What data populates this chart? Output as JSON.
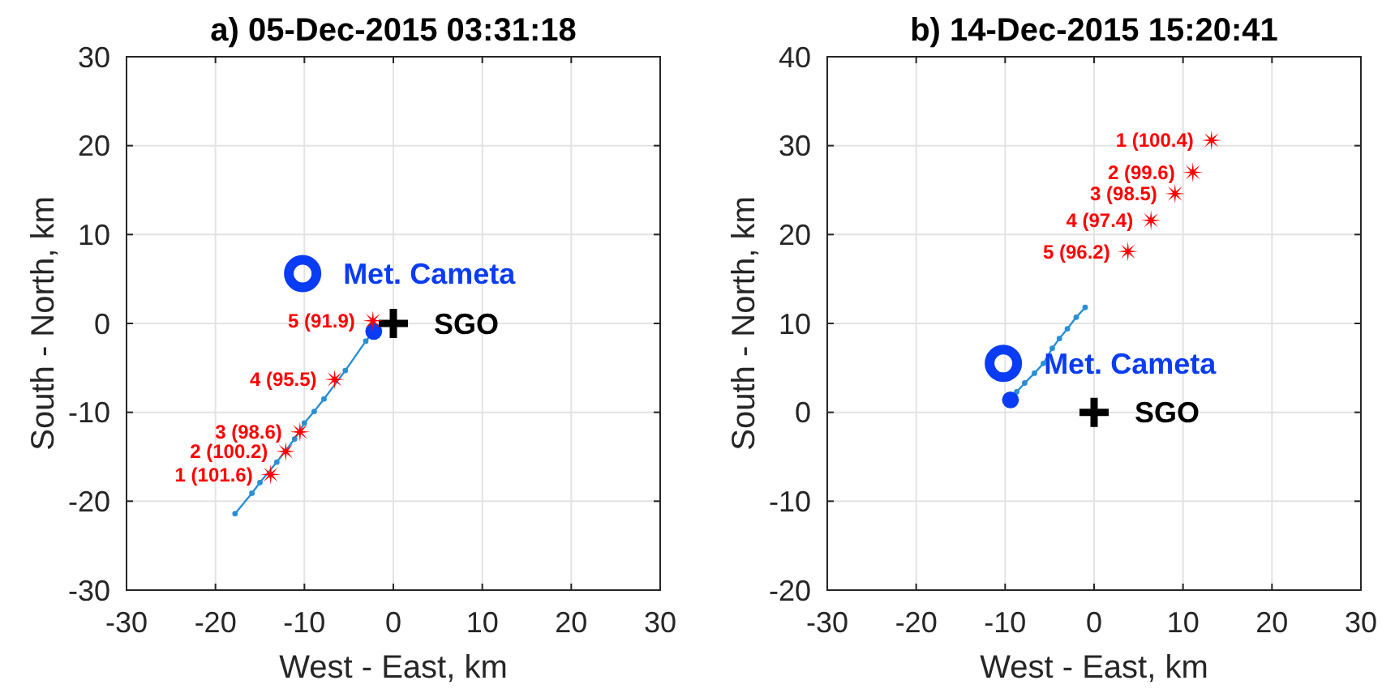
{
  "chart_data": [
    {
      "type": "scatter",
      "title": "a) 05-Dec-2015 03:31:18",
      "xlabel": "West - East, km",
      "ylabel": "South - North, km",
      "xlim": [
        -30,
        30
      ],
      "ylim": [
        -30,
        30
      ],
      "xticks": [
        -30,
        -20,
        -10,
        0,
        10,
        20,
        30
      ],
      "yticks": [
        -30,
        -20,
        -10,
        0,
        10,
        20,
        30
      ],
      "grid": true,
      "series": [
        {
          "type": "line",
          "color": "#2a8fd4",
          "marker": "circle",
          "x": [
            -17.8,
            -15.9,
            -15.0,
            -13.1,
            -11.1,
            -10.0,
            -8.9,
            -7.8,
            -5.4,
            -3.1,
            -2.2
          ],
          "values": [
            -21.4,
            -19.1,
            -17.9,
            -15.6,
            -13.0,
            -11.2,
            -9.9,
            -8.5,
            -5.3,
            -2.0,
            -0.9
          ]
        },
        {
          "color": "#0a3cf5",
          "marker": "circle",
          "x": [
            -2.2
          ],
          "values": [
            -0.9
          ]
        },
        {
          "name": "Met. Cameta",
          "color": "#0a3cf5",
          "marker": "circle",
          "x": [
            -10.2
          ],
          "values": [
            5.6
          ]
        },
        {
          "name": "SGO",
          "color": "#000000",
          "marker": "cross",
          "x": [
            0
          ],
          "values": [
            0
          ]
        },
        {
          "color": "#ff0000",
          "marker": "star",
          "x": [
            -13.8,
            -12.1,
            -10.5,
            -6.6,
            -2.3
          ],
          "values": [
            -17.0,
            -14.4,
            -12.2,
            -6.3,
            0.3
          ],
          "value_labels": [
            "1 (101.6)",
            "2 (100.2)",
            "3 (98.6)",
            "4 (95.5)",
            "5 (91.9)"
          ]
        }
      ]
    },
    {
      "type": "scatter",
      "title": "b) 14-Dec-2015 15:20:41",
      "xlabel": "West - East, km",
      "ylabel": "South - North, km",
      "xlim": [
        -30,
        30
      ],
      "ylim": [
        -20,
        40
      ],
      "xticks": [
        -30,
        -20,
        -10,
        0,
        10,
        20,
        30
      ],
      "yticks": [
        -20,
        -10,
        0,
        10,
        20,
        30,
        40
      ],
      "grid": true,
      "series": [
        {
          "type": "line",
          "color": "#2a8fd4",
          "marker": "circle",
          "x": [
            -8.7,
            -7.8,
            -6.7,
            -5.7,
            -4.7,
            -3.9,
            -3.0,
            -2.0,
            -1.0
          ],
          "values": [
            2.3,
            3.3,
            4.4,
            5.5,
            7.2,
            8.3,
            9.4,
            10.7,
            11.8
          ]
        },
        {
          "color": "#0a3cf5",
          "marker": "circle",
          "x": [
            -9.4
          ],
          "values": [
            1.4
          ]
        },
        {
          "name": "Met. Cameta",
          "color": "#0a3cf5",
          "marker": "circle",
          "x": [
            -10.2
          ],
          "values": [
            5.5
          ]
        },
        {
          "name": "SGO",
          "color": "#000000",
          "marker": "cross",
          "x": [
            0
          ],
          "values": [
            0
          ]
        },
        {
          "color": "#ff0000",
          "marker": "star",
          "x": [
            13.2,
            11.1,
            9.1,
            6.4,
            3.8
          ],
          "values": [
            30.6,
            27.0,
            24.6,
            21.6,
            18.1
          ],
          "value_labels": [
            "1 (100.4)",
            "2 (99.6)",
            "3 (98.5)",
            "4 (97.4)",
            "5 (96.2)"
          ]
        }
      ]
    }
  ]
}
